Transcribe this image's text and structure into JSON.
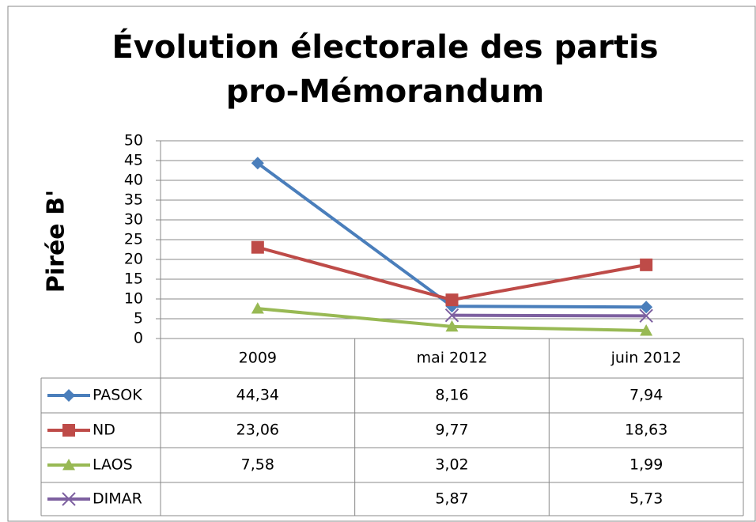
{
  "chart_data": {
    "type": "line",
    "title": [
      "Évolution électorale des partis",
      "pro-Mémorandum"
    ],
    "y_label": "Pirée B'",
    "categories": [
      "2009",
      "mai 2012",
      "juin 2012"
    ],
    "series": [
      {
        "name": "PASOK",
        "color": "#4a7ebb",
        "marker": "diamond",
        "values": [
          44.34,
          8.16,
          7.94
        ],
        "value_labels": [
          "44,34",
          "8,16",
          "7,94"
        ]
      },
      {
        "name": "ND",
        "color": "#be4b48",
        "marker": "square",
        "values": [
          23.06,
          9.77,
          18.63
        ],
        "value_labels": [
          "23,06",
          "9,77",
          "18,63"
        ]
      },
      {
        "name": "LAOS",
        "color": "#98b954",
        "marker": "triangle",
        "values": [
          7.58,
          3.02,
          1.99
        ],
        "value_labels": [
          "7,58",
          "3,02",
          "1,99"
        ]
      },
      {
        "name": "DIMAR",
        "color": "#7d60a0",
        "marker": "x",
        "values": [
          null,
          5.87,
          5.73
        ],
        "value_labels": [
          null,
          "5,87",
          "5,73"
        ]
      }
    ],
    "ylim": [
      0,
      50
    ],
    "yticks": [
      0,
      5,
      10,
      15,
      20,
      25,
      30,
      35,
      40,
      45,
      50
    ],
    "grid": true
  }
}
